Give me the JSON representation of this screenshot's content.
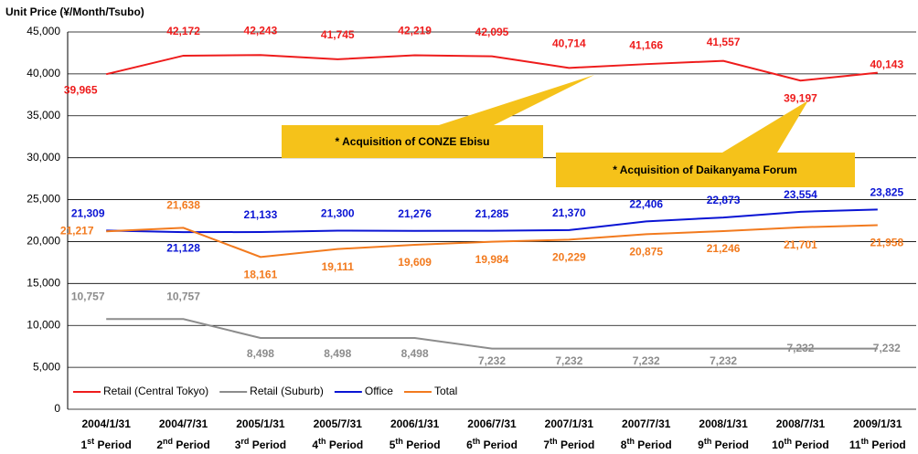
{
  "chart_data": {
    "type": "line",
    "y_axis_label": "Unit Price (¥/Month/Tsubo)",
    "categories": [
      "2004/1/31",
      "2004/7/31",
      "2005/1/31",
      "2005/7/31",
      "2006/1/31",
      "2006/7/31",
      "2007/1/31",
      "2007/7/31",
      "2008/1/31",
      "2008/7/31",
      "2009/1/31"
    ],
    "periods": [
      "1st Period",
      "2nd Period",
      "3rd Period",
      "4th Period",
      "5th Period",
      "6th Period",
      "7th Period",
      "8th Period",
      "9th Period",
      "10th Period",
      "11th Period"
    ],
    "series": [
      {
        "name": "Retail (Central Tokyo)",
        "color": "#ee1c1c",
        "values": [
          39965,
          42172,
          42243,
          41745,
          42219,
          42095,
          40714,
          41166,
          41557,
          39197,
          40143
        ],
        "value_labels": [
          "39,965",
          "42,172",
          "42,243",
          "41,745",
          "42,219",
          "42,095",
          "40,714",
          "41,166",
          "41,557",
          "39,197",
          "40,143"
        ]
      },
      {
        "name": "Retail (Suburb)",
        "color": "#8c8c8c",
        "values": [
          10757,
          10757,
          8498,
          8498,
          8498,
          7232,
          7232,
          7232,
          7232,
          7232,
          7232
        ],
        "value_labels": [
          "10,757",
          "10,757",
          "8,498",
          "8,498",
          "8,498",
          "7,232",
          "7,232",
          "7,232",
          "7,232",
          "7,232",
          "7,232"
        ]
      },
      {
        "name": "Office",
        "color": "#0a14d4",
        "values": [
          21309,
          21128,
          21133,
          21300,
          21276,
          21285,
          21370,
          22406,
          22873,
          23554,
          23825
        ],
        "value_labels": [
          "21,309",
          "21,128",
          "21,133",
          "21,300",
          "21,276",
          "21,285",
          "21,370",
          "22,406",
          "22,873",
          "23,554",
          "23,825"
        ]
      },
      {
        "name": "Total",
        "color": "#f27a1e",
        "values": [
          21217,
          21638,
          18161,
          19111,
          19609,
          19984,
          20229,
          20875,
          21246,
          21701,
          21958
        ],
        "value_labels": [
          "21,217",
          "21,638",
          "18,161",
          "19,111",
          "19,609",
          "19,984",
          "20,229",
          "20,875",
          "21,246",
          "21,701",
          "21,958"
        ]
      }
    ],
    "ylim": [
      0,
      45000
    ],
    "yticks": [
      0,
      {
        "value": 5000,
        "label": "5,000"
      },
      {
        "value": 10000,
        "label": "10,000"
      },
      {
        "value": 15000,
        "label": "15,000"
      },
      {
        "value": 20000,
        "label": "20,000"
      },
      {
        "value": 25000,
        "label": "25,000"
      },
      {
        "value": 30000,
        "label": "30,000"
      },
      {
        "value": 35000,
        "label": "35,000"
      },
      {
        "value": 40000,
        "label": "40,000"
      },
      {
        "value": 45000,
        "label": "45,000"
      }
    ],
    "grid": true,
    "legend": "bottom-left",
    "annotations": [
      "* Acquisition of CONZE Ebisu",
      "* Acquisition of Daikanyama Forum"
    ]
  }
}
